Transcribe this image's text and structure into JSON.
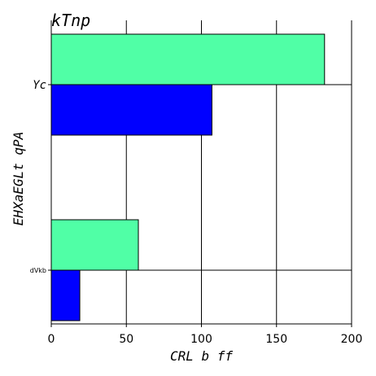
{
  "chart_data": {
    "type": "bar",
    "orientation": "horizontal",
    "title": "kTnp",
    "xlabel": "CRL b ff",
    "ylabel": "EHXaEGLt qPA",
    "xlim": [
      0,
      200
    ],
    "xticks": [
      "0",
      "50",
      "100",
      "150",
      "200"
    ],
    "categories": [
      "Yc",
      "dVkb"
    ],
    "series": [
      {
        "values": [
          182,
          58
        ],
        "color": "#50ffa6"
      },
      {
        "values": [
          107,
          19
        ],
        "color": "#0000ff"
      }
    ],
    "grid": "vertical",
    "legend": "none"
  }
}
